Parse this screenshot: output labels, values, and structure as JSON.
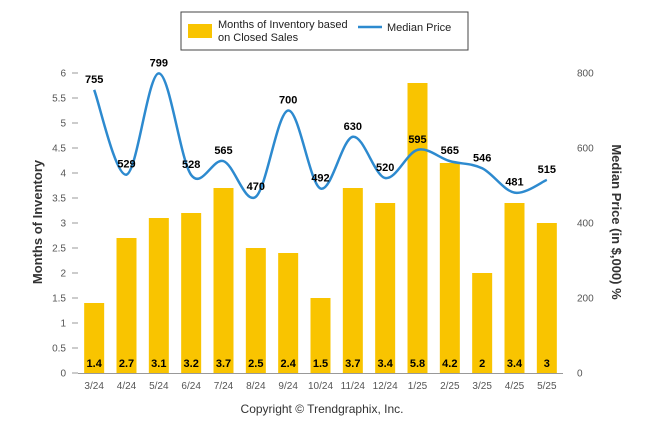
{
  "chart_data": {
    "type": "bar",
    "categories": [
      "3/24",
      "4/24",
      "5/24",
      "6/24",
      "7/24",
      "8/24",
      "9/24",
      "10/24",
      "11/24",
      "12/24",
      "1/25",
      "2/25",
      "3/25",
      "4/25",
      "5/25"
    ],
    "series": [
      {
        "name": "Months of Inventory based on Closed Sales",
        "type": "bar",
        "axis": "left",
        "color": "#F9C400",
        "values": [
          1.4,
          2.7,
          3.1,
          3.2,
          3.7,
          2.5,
          2.4,
          1.5,
          3.7,
          3.4,
          5.8,
          4.2,
          2,
          3.4,
          3
        ],
        "labels": [
          "1.4",
          "2.7",
          "3.1",
          "3.2",
          "3.7",
          "2.5",
          "2.4",
          "1.5",
          "3.7",
          "3.4",
          "5.8",
          "4.2",
          "2",
          "3.4",
          "3"
        ]
      },
      {
        "name": "Median Price",
        "type": "line",
        "axis": "right",
        "color": "#2D8ACF",
        "values": [
          755,
          529,
          799,
          528,
          565,
          470,
          700,
          492,
          630,
          520,
          595,
          565,
          546,
          481,
          515
        ],
        "labels": [
          "755",
          "529",
          "799",
          "528",
          "565",
          "470",
          "700",
          "492",
          "630",
          "520",
          "595",
          "565",
          "546",
          "481",
          "515"
        ]
      }
    ],
    "legend_lines": [
      [
        "Months of Inventory based",
        "on Closed Sales"
      ],
      [
        "Median Price"
      ]
    ],
    "legend_position": "top-center",
    "ylabel": "Months of Inventory",
    "y2label": "Median Price (in $,000) %",
    "ylim": [
      0,
      6
    ],
    "y2lim": [
      0,
      800
    ],
    "yticks": [
      "0",
      "0.5",
      "1",
      "1.5",
      "2",
      "2.5",
      "3",
      "3.5",
      "4",
      "4.5",
      "5",
      "5.5",
      "6"
    ],
    "y2ticks": [
      "0",
      "200",
      "400",
      "600",
      "800"
    ],
    "grid": false
  },
  "copyright": "Copyright © Trendgraphix, Inc."
}
